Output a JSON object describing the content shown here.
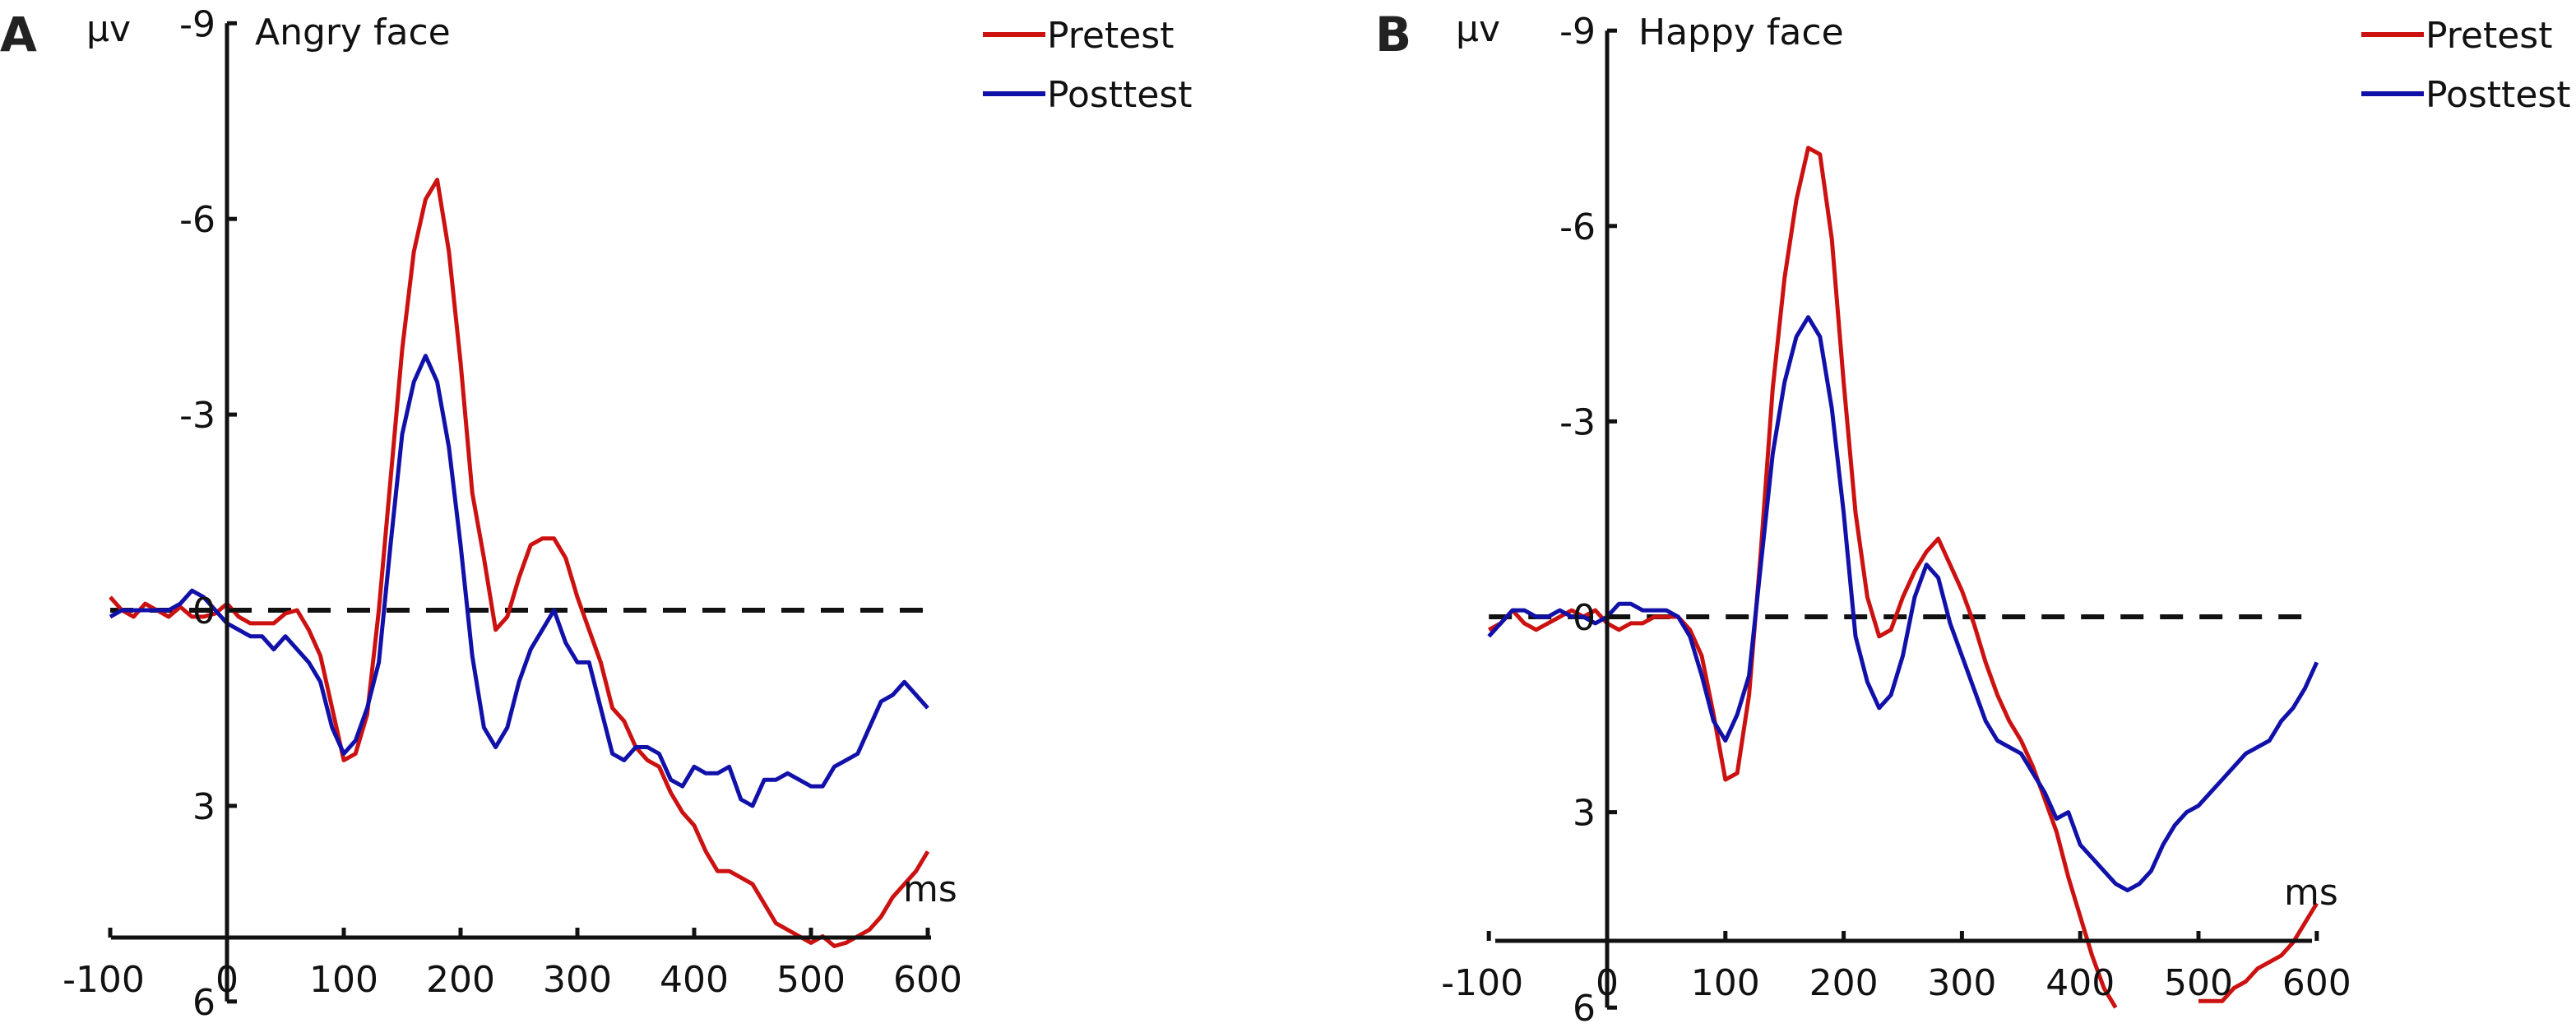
{
  "chart_data": [
    {
      "type": "line",
      "panel_label": "A",
      "title": "Angry face",
      "ylabel": "μv",
      "xlabel": "ms",
      "ylim": [
        -9,
        6
      ],
      "y_inverted": true,
      "xlim": [
        -100,
        600
      ],
      "yticks": [
        "-9",
        "-6",
        "-3",
        "0",
        "3",
        "6"
      ],
      "ytick_values": [
        -9,
        -6,
        -3,
        0,
        3,
        6
      ],
      "xticks": [
        "-100",
        "0",
        "100",
        "200",
        "300",
        "400",
        "500",
        "600"
      ],
      "xtick_values": [
        -100,
        0,
        100,
        200,
        300,
        400,
        500,
        600
      ],
      "legend_position": "top-right",
      "x": [
        -100,
        -90,
        -80,
        -70,
        -60,
        -50,
        -40,
        -30,
        -20,
        -10,
        0,
        10,
        20,
        30,
        40,
        50,
        60,
        70,
        80,
        90,
        100,
        110,
        120,
        130,
        140,
        150,
        160,
        170,
        180,
        190,
        200,
        210,
        220,
        230,
        240,
        250,
        260,
        270,
        280,
        290,
        300,
        310,
        320,
        330,
        340,
        350,
        360,
        370,
        380,
        390,
        400,
        410,
        420,
        430,
        440,
        450,
        460,
        470,
        480,
        490,
        500,
        510,
        520,
        530,
        540,
        550,
        560,
        570,
        580,
        590,
        600
      ],
      "series": [
        {
          "name": "Pretest",
          "color": "#cc1111",
          "values": [
            -0.2,
            0,
            0.1,
            -0.1,
            0,
            0.1,
            -0.05,
            0.1,
            0.1,
            0.05,
            -0.1,
            0.1,
            0.2,
            0.2,
            0.2,
            0.05,
            0,
            0.3,
            0.7,
            1.5,
            2.3,
            2.2,
            1.6,
            0,
            -2,
            -4,
            -5.5,
            -6.3,
            -6.6,
            -5.5,
            -3.8,
            -1.8,
            -0.8,
            0.3,
            0.1,
            -0.5,
            -1,
            -1.1,
            -1.1,
            -0.8,
            -0.2,
            0.3,
            0.8,
            1.5,
            1.7,
            2.1,
            2.3,
            2.4,
            2.8,
            3.1,
            3.3,
            3.7,
            4.0,
            4.0,
            4.1,
            4.2,
            4.5,
            4.8,
            4.9,
            5.0,
            5.1,
            5.0,
            5.15,
            5.1,
            5.0,
            4.9,
            4.7,
            4.4,
            4.2,
            4.0,
            3.7
          ]
        },
        {
          "name": "Posttest",
          "color": "#1111aa",
          "values": [
            0.1,
            0,
            0,
            0,
            0,
            0,
            -0.1,
            -0.3,
            -0.2,
            0,
            0.2,
            0.3,
            0.4,
            0.4,
            0.6,
            0.4,
            0.6,
            0.8,
            1.1,
            1.8,
            2.2,
            2.0,
            1.5,
            0.8,
            -1.0,
            -2.7,
            -3.5,
            -3.9,
            -3.5,
            -2.5,
            -1.0,
            0.7,
            1.8,
            2.1,
            1.8,
            1.1,
            0.6,
            0.3,
            0,
            0.5,
            0.8,
            0.8,
            1.5,
            2.2,
            2.3,
            2.1,
            2.1,
            2.2,
            2.6,
            2.7,
            2.4,
            2.5,
            2.5,
            2.4,
            2.9,
            3.0,
            2.6,
            2.6,
            2.5,
            2.6,
            2.7,
            2.7,
            2.4,
            2.3,
            2.2,
            1.8,
            1.4,
            1.3,
            1.1,
            1.3,
            1.5
          ]
        }
      ]
    },
    {
      "type": "line",
      "panel_label": "B",
      "title": "Happy face",
      "ylabel": "μv",
      "xlabel": "ms",
      "ylim": [
        -9,
        6
      ],
      "y_inverted": true,
      "xlim": [
        -100,
        600
      ],
      "yticks": [
        "-9",
        "-6",
        "-3",
        "0",
        "3",
        "6"
      ],
      "ytick_values": [
        -9,
        -6,
        -3,
        0,
        3,
        6
      ],
      "xticks": [
        "-100",
        "0",
        "100",
        "200",
        "300",
        "400",
        "500",
        "600"
      ],
      "xtick_values": [
        -100,
        0,
        100,
        200,
        300,
        400,
        500,
        600
      ],
      "legend_position": "top-right",
      "x": [
        -100,
        -90,
        -80,
        -70,
        -60,
        -50,
        -40,
        -30,
        -20,
        -10,
        0,
        10,
        20,
        30,
        40,
        50,
        60,
        70,
        80,
        90,
        100,
        110,
        120,
        130,
        140,
        150,
        160,
        170,
        180,
        190,
        200,
        210,
        220,
        230,
        240,
        250,
        260,
        270,
        280,
        290,
        300,
        310,
        320,
        330,
        340,
        350,
        360,
        370,
        380,
        390,
        400,
        410,
        420,
        430,
        440,
        450,
        460,
        470,
        480,
        490,
        500,
        510,
        520,
        530,
        540,
        550,
        560,
        570,
        580,
        590,
        600
      ],
      "series": [
        {
          "name": "Pretest",
          "color": "#cc1111",
          "values": [
            0.2,
            0.1,
            -0.1,
            0.1,
            0.2,
            0.1,
            0,
            -0.1,
            0,
            -0.1,
            0.1,
            0.2,
            0.1,
            0.1,
            0,
            0,
            0,
            0.2,
            0.6,
            1.5,
            2.5,
            2.4,
            1.2,
            -1.0,
            -3.5,
            -5.2,
            -6.4,
            -7.2,
            -7.1,
            -5.8,
            -3.6,
            -1.6,
            -0.3,
            0.3,
            0.2,
            -0.3,
            -0.7,
            -1.0,
            -1.2,
            -0.8,
            -0.4,
            0.1,
            0.7,
            1.2,
            1.6,
            1.9,
            2.3,
            2.8,
            3.3,
            4.0,
            4.6,
            5.2,
            5.7,
            6.0,
            null,
            null,
            null,
            null,
            null,
            null,
            5.9,
            5.9,
            5.9,
            5.7,
            5.6,
            5.4,
            5.3,
            5.2,
            5.0,
            4.7,
            4.4
          ]
        },
        {
          "name": "Posttest",
          "color": "#1111aa",
          "values": [
            0.3,
            0.1,
            -0.1,
            -0.1,
            0,
            0,
            -0.1,
            0,
            0,
            0.1,
            0,
            -0.2,
            -0.2,
            -0.1,
            -0.1,
            -0.1,
            0,
            0.3,
            0.9,
            1.6,
            1.9,
            1.5,
            0.9,
            -0.8,
            -2.5,
            -3.6,
            -4.3,
            -4.6,
            -4.3,
            -3.2,
            -1.6,
            0.3,
            1.0,
            1.4,
            1.2,
            0.6,
            -0.3,
            -0.8,
            -0.6,
            0.1,
            0.6,
            1.1,
            1.6,
            1.9,
            2.0,
            2.1,
            2.4,
            2.7,
            3.1,
            3.0,
            3.5,
            3.7,
            3.9,
            4.1,
            4.2,
            4.1,
            3.9,
            3.5,
            3.2,
            3.0,
            2.9,
            2.7,
            2.5,
            2.3,
            2.1,
            2.0,
            1.9,
            1.6,
            1.4,
            1.1,
            0.7
          ]
        }
      ]
    }
  ]
}
